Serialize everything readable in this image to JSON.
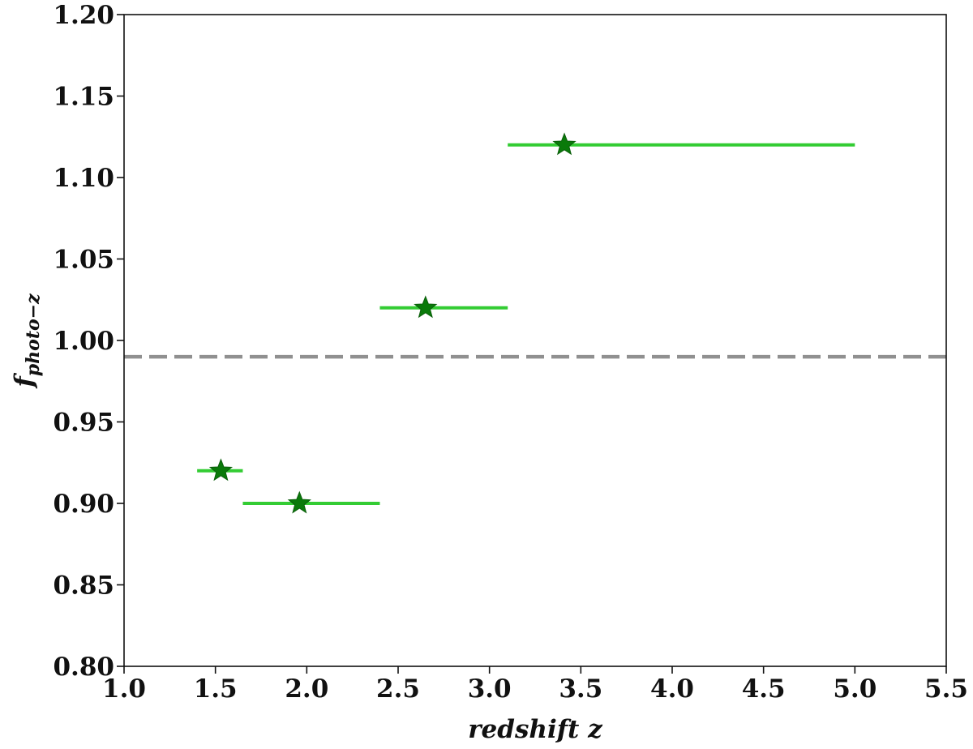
{
  "chart_data": {
    "type": "scatter",
    "title": "",
    "xlabel": "redshift z",
    "ylabel": {
      "main": "f",
      "subscript": "photo−z"
    },
    "xlim": [
      1.0,
      5.5
    ],
    "ylim": [
      0.8,
      1.2
    ],
    "xticks": [
      1.0,
      1.5,
      2.0,
      2.5,
      3.0,
      3.5,
      4.0,
      4.5,
      5.0,
      5.5
    ],
    "xtick_labels": [
      "1.0",
      "1.5",
      "2.0",
      "2.5",
      "3.0",
      "3.5",
      "4.0",
      "4.5",
      "5.0",
      "5.5"
    ],
    "yticks": [
      0.8,
      0.85,
      0.9,
      0.95,
      1.0,
      1.05,
      1.1,
      1.15,
      1.2
    ],
    "ytick_labels": [
      "0.80",
      "0.85",
      "0.90",
      "0.95",
      "1.00",
      "1.05",
      "1.10",
      "1.15",
      "1.20"
    ],
    "grid": false,
    "reference_line": {
      "y": 0.99,
      "style": "dashed",
      "color": "#909090"
    },
    "marker": "star",
    "marker_color": "#0a7a0a",
    "bin_color": "#33cc33",
    "points": [
      {
        "x": 1.53,
        "y": 0.92,
        "x_low": 1.4,
        "x_high": 1.65
      },
      {
        "x": 1.96,
        "y": 0.9,
        "x_low": 1.65,
        "x_high": 2.4
      },
      {
        "x": 2.65,
        "y": 1.02,
        "x_low": 2.4,
        "x_high": 3.1
      },
      {
        "x": 3.41,
        "y": 1.12,
        "x_low": 3.1,
        "x_high": 5.0
      }
    ]
  }
}
